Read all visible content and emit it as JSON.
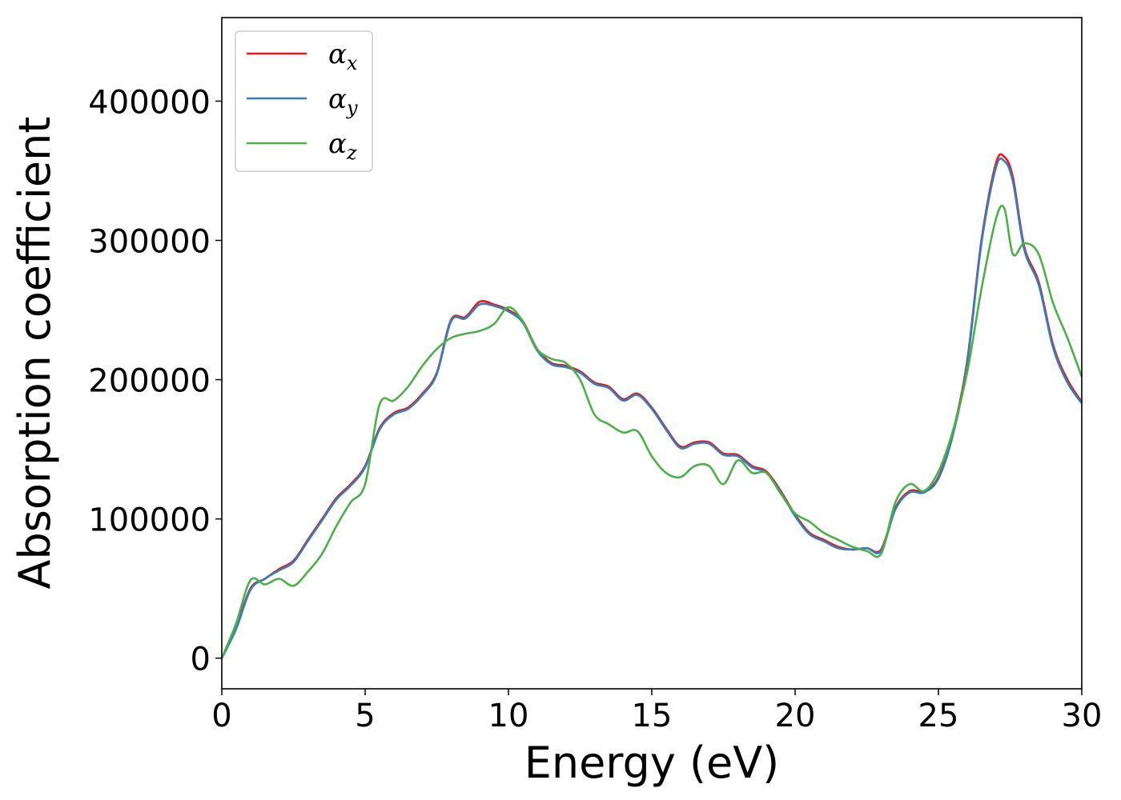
{
  "chart_data": {
    "type": "line",
    "title": "",
    "xlabel": "Energy (eV)",
    "ylabel": "Absorption coefficient",
    "xlim": [
      0,
      30
    ],
    "ylim": [
      -22000,
      460000
    ],
    "xticks": [
      0,
      5,
      10,
      15,
      20,
      25,
      30
    ],
    "yticks": [
      0,
      100000,
      200000,
      300000,
      400000
    ],
    "grid": false,
    "legend_position": "top-left",
    "series": [
      {
        "name": "α_x",
        "legend_main": "α",
        "legend_sub": "x",
        "color": "#e41a1c",
        "x": [
          0,
          0.5,
          1.0,
          1.5,
          2.0,
          2.5,
          3.0,
          3.5,
          4.0,
          4.5,
          5.0,
          5.5,
          6.0,
          6.5,
          7.0,
          7.5,
          8.0,
          8.5,
          9.0,
          9.5,
          10.0,
          10.5,
          11.0,
          11.5,
          12.0,
          12.5,
          13.0,
          13.5,
          14.0,
          14.5,
          15.0,
          15.5,
          16.0,
          16.5,
          17.0,
          17.5,
          18.0,
          18.5,
          19.0,
          19.5,
          20.0,
          20.5,
          21.0,
          21.5,
          22.0,
          22.5,
          23.0,
          23.5,
          24.0,
          24.5,
          25.0,
          25.5,
          26.0,
          26.5,
          27.0,
          27.3,
          27.6,
          28.0,
          28.5,
          29.0,
          29.5,
          30.0
        ],
        "y": [
          0,
          22000,
          50000,
          57000,
          64000,
          70000,
          85000,
          100000,
          115000,
          125000,
          138000,
          165000,
          176000,
          180000,
          190000,
          205000,
          243000,
          245000,
          256000,
          254000,
          250000,
          242000,
          222000,
          212000,
          210000,
          206000,
          198000,
          195000,
          186000,
          190000,
          180000,
          165000,
          152000,
          155000,
          155000,
          147000,
          146000,
          138000,
          134000,
          120000,
          103000,
          90000,
          85000,
          80000,
          78000,
          79000,
          78000,
          108000,
          120000,
          120000,
          130000,
          162000,
          213000,
          300000,
          355000,
          360000,
          345000,
          295000,
          270000,
          225000,
          200000,
          184000
        ]
      },
      {
        "name": "α_y",
        "legend_main": "α",
        "legend_sub": "y",
        "color": "#377eb8",
        "x": [
          0,
          0.5,
          1.0,
          1.5,
          2.0,
          2.5,
          3.0,
          3.5,
          4.0,
          4.5,
          5.0,
          5.5,
          6.0,
          6.5,
          7.0,
          7.5,
          8.0,
          8.5,
          9.0,
          9.5,
          10.0,
          10.5,
          11.0,
          11.5,
          12.0,
          12.5,
          13.0,
          13.5,
          14.0,
          14.5,
          15.0,
          15.5,
          16.0,
          16.5,
          17.0,
          17.5,
          18.0,
          18.5,
          19.0,
          19.5,
          20.0,
          20.5,
          21.0,
          21.5,
          22.0,
          22.5,
          23.0,
          23.5,
          24.0,
          24.5,
          25.0,
          25.5,
          26.0,
          26.5,
          27.0,
          27.3,
          27.6,
          28.0,
          28.5,
          29.0,
          29.5,
          30.0
        ],
        "y": [
          0,
          21000,
          49000,
          57000,
          63000,
          69000,
          84000,
          99000,
          114000,
          124000,
          137000,
          164000,
          175000,
          179000,
          189000,
          204000,
          242000,
          244000,
          254000,
          253000,
          249000,
          241000,
          221000,
          211000,
          209000,
          205000,
          197000,
          194000,
          185000,
          189000,
          179000,
          164000,
          151000,
          154000,
          154000,
          146000,
          145000,
          137000,
          133000,
          119000,
          102000,
          89000,
          84000,
          79000,
          78000,
          79000,
          77000,
          107000,
          119000,
          119000,
          129000,
          160000,
          211000,
          298000,
          352000,
          357000,
          342000,
          293000,
          268000,
          223000,
          198000,
          183000
        ]
      },
      {
        "name": "α_z",
        "legend_main": "α",
        "legend_sub": "z",
        "color": "#4daf4a",
        "x": [
          0,
          0.5,
          1.0,
          1.5,
          2.0,
          2.5,
          3.0,
          3.5,
          4.0,
          4.5,
          5.0,
          5.5,
          6.0,
          6.5,
          7.0,
          7.5,
          8.0,
          8.5,
          9.0,
          9.5,
          10.0,
          10.5,
          11.0,
          11.5,
          12.0,
          12.5,
          13.0,
          13.5,
          14.0,
          14.5,
          15.0,
          15.5,
          16.0,
          16.5,
          17.0,
          17.5,
          18.0,
          18.5,
          19.0,
          19.5,
          20.0,
          20.5,
          21.0,
          21.5,
          22.0,
          22.5,
          23.0,
          23.5,
          24.0,
          24.5,
          25.0,
          25.5,
          26.0,
          26.5,
          27.0,
          27.3,
          27.6,
          28.0,
          28.5,
          29.0,
          29.5,
          30.0
        ],
        "y": [
          0,
          25000,
          56000,
          53000,
          57000,
          52000,
          62000,
          75000,
          95000,
          112000,
          125000,
          182000,
          185000,
          195000,
          210000,
          222000,
          230000,
          233000,
          235000,
          240000,
          252000,
          242000,
          222000,
          215000,
          212000,
          200000,
          175000,
          168000,
          162000,
          163000,
          145000,
          133000,
          130000,
          138000,
          138000,
          125000,
          142000,
          133000,
          133000,
          118000,
          104000,
          98000,
          90000,
          85000,
          80000,
          77000,
          75000,
          112000,
          125000,
          120000,
          134000,
          163000,
          205000,
          265000,
          315000,
          323000,
          290000,
          298000,
          290000,
          255000,
          230000,
          202000
        ]
      }
    ]
  }
}
